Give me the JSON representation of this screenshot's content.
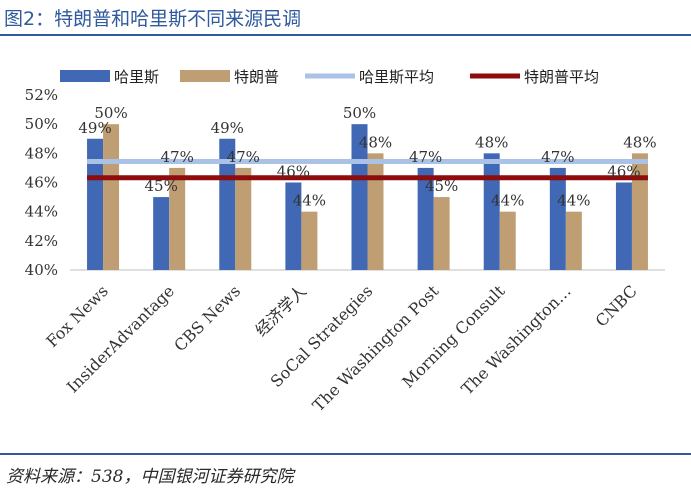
{
  "header": {
    "title": "图2：特朗普和哈里斯不同来源民调"
  },
  "footer": {
    "source": "资料来源：538，中国银河证券研究院"
  },
  "colors": {
    "harris": "#4168B4",
    "trump": "#BF9E73",
    "harris_avg": "#A9C2E6",
    "trump_avg": "#8E0C0C",
    "title": "#2F5A9E"
  },
  "chart_data": {
    "type": "bar",
    "categories": [
      "Fox News",
      "InsiderAdvantage",
      "CBS News",
      "经济学人",
      "SoCal Strategies",
      "The Washington Post",
      "Morning Consult",
      "The Washington…",
      "CNBC"
    ],
    "series": [
      {
        "name": "哈里斯",
        "values": [
          49,
          45,
          49,
          46,
          50,
          47,
          48,
          47,
          46
        ]
      },
      {
        "name": "特朗普",
        "values": [
          50,
          47,
          47,
          44,
          48,
          45,
          44,
          44,
          48
        ]
      }
    ],
    "averages": [
      {
        "name": "哈里斯平均",
        "value": 47.44
      },
      {
        "name": "特朗普平均",
        "value": 46.33
      }
    ],
    "yticks": [
      "40%",
      "42%",
      "44%",
      "46%",
      "48%",
      "50%",
      "52%"
    ],
    "ylim": [
      40,
      52
    ],
    "value_suffix": "%",
    "legend_position": "top",
    "grid": false
  }
}
